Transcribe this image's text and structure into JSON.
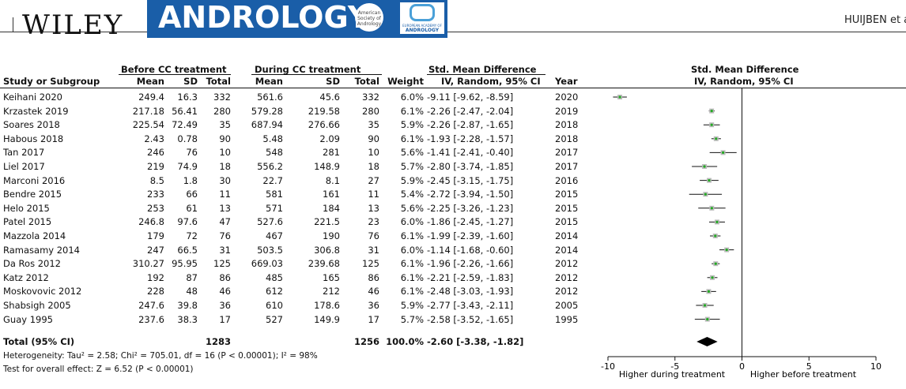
{
  "header": {
    "publisher": "WILEY",
    "journal": "ANDROLOGY",
    "asa_logo_text": "American Society of Andrology",
    "eaa_logo_line1": "EUROPEAN ACADEMY OF",
    "eaa_logo_line2": "ANDROLOGY",
    "running_author": "HUIJBEN et al."
  },
  "table": {
    "group_before": "Before CC treatment",
    "group_during": "During CC treatment",
    "group_smd": "Std. Mean Difference",
    "group_plot": "Std. Mean Difference",
    "col_study": "Study or Subgroup",
    "col_mean1": "Mean",
    "col_sd1": "SD",
    "col_total1": "Total",
    "col_mean2": "Mean",
    "col_sd2": "SD",
    "col_total2": "Total",
    "col_weight": "Weight",
    "col_method": "IV, Random, 95% CI",
    "col_year": "Year",
    "col_plot_method": "IV, Random, 95% CI",
    "rows": [
      {
        "study": "Keihani 2020",
        "m1": "249.4",
        "sd1": "16.3",
        "n1": "332",
        "m2": "561.6",
        "sd2": "45.6",
        "n2": "332",
        "w": "6.0%",
        "ci": "-9.11 [-9.62, -8.59]",
        "year": "2020"
      },
      {
        "study": "Krzastek 2019",
        "m1": "217.18",
        "sd1": "56.41",
        "n1": "280",
        "m2": "579.28",
        "sd2": "219.58",
        "n2": "280",
        "w": "6.1%",
        "ci": "-2.26 [-2.47, -2.04]",
        "year": "2019"
      },
      {
        "study": "Soares 2018",
        "m1": "225.54",
        "sd1": "72.49",
        "n1": "35",
        "m2": "687.94",
        "sd2": "276.66",
        "n2": "35",
        "w": "5.9%",
        "ci": "-2.26 [-2.87, -1.65]",
        "year": "2018"
      },
      {
        "study": "Habous 2018",
        "m1": "2.43",
        "sd1": "0.78",
        "n1": "90",
        "m2": "5.48",
        "sd2": "2.09",
        "n2": "90",
        "w": "6.1%",
        "ci": "-1.93 [-2.28, -1.57]",
        "year": "2018"
      },
      {
        "study": "Tan 2017",
        "m1": "246",
        "sd1": "76",
        "n1": "10",
        "m2": "548",
        "sd2": "281",
        "n2": "10",
        "w": "5.6%",
        "ci": "-1.41 [-2.41, -0.40]",
        "year": "2017"
      },
      {
        "study": "Liel 2017",
        "m1": "219",
        "sd1": "74.9",
        "n1": "18",
        "m2": "556.2",
        "sd2": "148.9",
        "n2": "18",
        "w": "5.7%",
        "ci": "-2.80 [-3.74, -1.85]",
        "year": "2017"
      },
      {
        "study": "Marconi 2016",
        "m1": "8.5",
        "sd1": "1.8",
        "n1": "30",
        "m2": "22.7",
        "sd2": "8.1",
        "n2": "27",
        "w": "5.9%",
        "ci": "-2.45 [-3.15, -1.75]",
        "year": "2016"
      },
      {
        "study": "Bendre 2015",
        "m1": "233",
        "sd1": "66",
        "n1": "11",
        "m2": "581",
        "sd2": "161",
        "n2": "11",
        "w": "5.4%",
        "ci": "-2.72 [-3.94, -1.50]",
        "year": "2015"
      },
      {
        "study": "Helo 2015",
        "m1": "253",
        "sd1": "61",
        "n1": "13",
        "m2": "571",
        "sd2": "184",
        "n2": "13",
        "w": "5.6%",
        "ci": "-2.25 [-3.26, -1.23]",
        "year": "2015"
      },
      {
        "study": "Patel 2015",
        "m1": "246.8",
        "sd1": "97.6",
        "n1": "47",
        "m2": "527.6",
        "sd2": "221.5",
        "n2": "23",
        "w": "6.0%",
        "ci": "-1.86 [-2.45, -1.27]",
        "year": "2015"
      },
      {
        "study": "Mazzola 2014",
        "m1": "179",
        "sd1": "72",
        "n1": "76",
        "m2": "467",
        "sd2": "190",
        "n2": "76",
        "w": "6.1%",
        "ci": "-1.99 [-2.39, -1.60]",
        "year": "2014"
      },
      {
        "study": "Ramasamy 2014",
        "m1": "247",
        "sd1": "66.5",
        "n1": "31",
        "m2": "503.5",
        "sd2": "306.8",
        "n2": "31",
        "w": "6.0%",
        "ci": "-1.14 [-1.68, -0.60]",
        "year": "2014"
      },
      {
        "study": "Da Ros 2012",
        "m1": "310.27",
        "sd1": "95.95",
        "n1": "125",
        "m2": "669.03",
        "sd2": "239.68",
        "n2": "125",
        "w": "6.1%",
        "ci": "-1.96 [-2.26, -1.66]",
        "year": "2012"
      },
      {
        "study": "Katz 2012",
        "m1": "192",
        "sd1": "87",
        "n1": "86",
        "m2": "485",
        "sd2": "165",
        "n2": "86",
        "w": "6.1%",
        "ci": "-2.21 [-2.59, -1.83]",
        "year": "2012"
      },
      {
        "study": "Moskovovic 2012",
        "m1": "228",
        "sd1": "48",
        "n1": "46",
        "m2": "612",
        "sd2": "212",
        "n2": "46",
        "w": "6.1%",
        "ci": "-2.48 [-3.03, -1.93]",
        "year": "2012"
      },
      {
        "study": "Shabsigh 2005",
        "m1": "247.6",
        "sd1": "39.8",
        "n1": "36",
        "m2": "610",
        "sd2": "178.6",
        "n2": "36",
        "w": "5.9%",
        "ci": "-2.77 [-3.43, -2.11]",
        "year": "2005"
      },
      {
        "study": "Guay 1995",
        "m1": "237.6",
        "sd1": "38.3",
        "n1": "17",
        "m2": "527",
        "sd2": "149.9",
        "n2": "17",
        "w": "5.7%",
        "ci": "-2.58 [-3.52, -1.65]",
        "year": "1995"
      }
    ],
    "total": {
      "study": "Total (95% CI)",
      "n1": "1283",
      "n2": "1256",
      "w": "100.0%",
      "ci": "-2.60 [-3.38, -1.82]"
    },
    "heterogeneity": "Heterogeneity: Tau² = 2.58; Chi² = 705.01, df = 16 (P < 0.00001); I² = 98%",
    "overall_effect": "Test for overall effect: Z = 6.52 (P < 0.00001)"
  },
  "chart_data": {
    "type": "scatter",
    "title": "Std. Mean Difference",
    "subtitle": "IV, Random, 95% CI",
    "xlim": [
      -10,
      10
    ],
    "xticks": [
      "-10",
      "-5",
      "0",
      "5",
      "10"
    ],
    "left_label": "Higher during treatment",
    "right_label": "Higher before treatment",
    "point_color": "#22aa22",
    "estimates": [
      {
        "name": "Keihani 2020",
        "smd": -9.11,
        "lo": -9.62,
        "hi": -8.59
      },
      {
        "name": "Krzastek 2019",
        "smd": -2.26,
        "lo": -2.47,
        "hi": -2.04
      },
      {
        "name": "Soares 2018",
        "smd": -2.26,
        "lo": -2.87,
        "hi": -1.65
      },
      {
        "name": "Habous 2018",
        "smd": -1.93,
        "lo": -2.28,
        "hi": -1.57
      },
      {
        "name": "Tan 2017",
        "smd": -1.41,
        "lo": -2.41,
        "hi": -0.4
      },
      {
        "name": "Liel 2017",
        "smd": -2.8,
        "lo": -3.74,
        "hi": -1.85
      },
      {
        "name": "Marconi 2016",
        "smd": -2.45,
        "lo": -3.15,
        "hi": -1.75
      },
      {
        "name": "Bendre 2015",
        "smd": -2.72,
        "lo": -3.94,
        "hi": -1.5
      },
      {
        "name": "Helo 2015",
        "smd": -2.25,
        "lo": -3.26,
        "hi": -1.23
      },
      {
        "name": "Patel 2015",
        "smd": -1.86,
        "lo": -2.45,
        "hi": -1.27
      },
      {
        "name": "Mazzola 2014",
        "smd": -1.99,
        "lo": -2.39,
        "hi": -1.6
      },
      {
        "name": "Ramasamy 2014",
        "smd": -1.14,
        "lo": -1.68,
        "hi": -0.6
      },
      {
        "name": "Da Ros 2012",
        "smd": -1.96,
        "lo": -2.26,
        "hi": -1.66
      },
      {
        "name": "Katz 2012",
        "smd": -2.21,
        "lo": -2.59,
        "hi": -1.83
      },
      {
        "name": "Moskovovic 2012",
        "smd": -2.48,
        "lo": -3.03,
        "hi": -1.93
      },
      {
        "name": "Shabsigh 2005",
        "smd": -2.77,
        "lo": -3.43,
        "hi": -2.11
      },
      {
        "name": "Guay 1995",
        "smd": -2.58,
        "lo": -3.52,
        "hi": -1.65
      }
    ],
    "pooled": {
      "smd": -2.6,
      "lo": -3.38,
      "hi": -1.82
    }
  }
}
